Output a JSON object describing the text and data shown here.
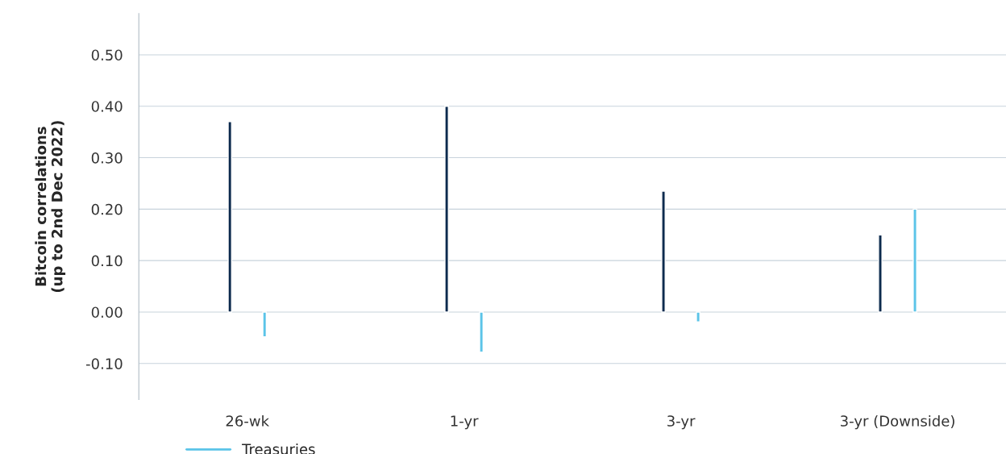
{
  "chart_data": {
    "type": "bar",
    "ylabel": "Bitcoin correlations\n(up to 2nd Dec 2022)",
    "categories": [
      "26-wk",
      "1-yr",
      "3-yr",
      "3-yr (Downside)"
    ],
    "series": [
      {
        "color": "#0d2b4e",
        "values": [
          0.37,
          0.4,
          0.235,
          0.15
        ]
      },
      {
        "name": "Treasuries",
        "color": "#5bc4e8",
        "values": [
          -0.048,
          -0.078,
          -0.019,
          0.2
        ]
      }
    ],
    "ylim": [
      -0.17,
      0.58
    ],
    "yticks": [
      {
        "value": -0.1,
        "label": "-0.10"
      },
      {
        "value": 0.0,
        "label": "0.00"
      },
      {
        "value": 0.1,
        "label": "0.10"
      },
      {
        "value": 0.2,
        "label": "0.20"
      },
      {
        "value": 0.3,
        "label": "0.30"
      },
      {
        "value": 0.4,
        "label": "0.40"
      },
      {
        "value": 0.5,
        "label": "0.50"
      }
    ],
    "grid": "y",
    "legend": "bottom left"
  }
}
